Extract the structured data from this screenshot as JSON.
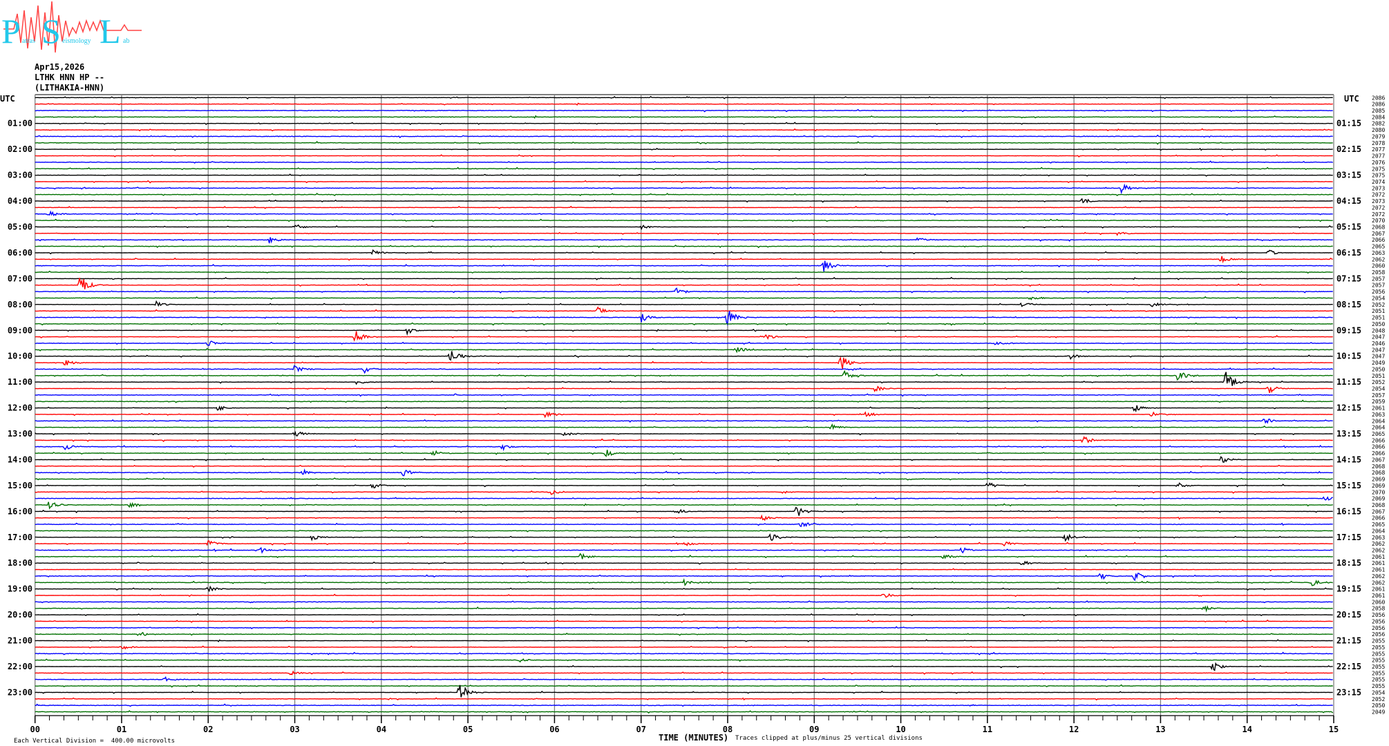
{
  "logo": {
    "letters": [
      "P",
      "S",
      "L"
    ],
    "words": [
      "atras",
      "eismology",
      "ab"
    ],
    "colors": {
      "letters": "#22c8ea",
      "wave": "#ff4444"
    }
  },
  "header": {
    "date": "Apr15,2026",
    "channel": "LTHK HNN HP --",
    "station": "(LITHAKIA-HNN)"
  },
  "footer": {
    "scale_note": "Each Vertical Division =  400.00 microvolts",
    "clip_note": "Traces clipped at plus/minus 25 vertical divisions"
  },
  "chart_data": {
    "type": "line",
    "xlabel": "TIME (MINUTES)",
    "xlim": [
      0,
      15
    ],
    "x_ticks": [
      "00",
      "01",
      "02",
      "03",
      "04",
      "05",
      "06",
      "07",
      "08",
      "09",
      "10",
      "11",
      "12",
      "13",
      "14",
      "15"
    ],
    "left_axis_title": "UTC",
    "right_axis_title": "UTC",
    "left_labels": [
      "01:00",
      "02:00",
      "03:00",
      "04:00",
      "05:00",
      "06:00",
      "07:00",
      "08:00",
      "09:00",
      "10:00",
      "11:00",
      "12:00",
      "13:00",
      "14:00",
      "15:00",
      "16:00",
      "17:00",
      "18:00",
      "19:00",
      "20:00",
      "21:00",
      "22:00",
      "23:00"
    ],
    "right_labels": [
      "01:15",
      "02:15",
      "03:15",
      "04:15",
      "05:15",
      "06:15",
      "07:15",
      "08:15",
      "09:15",
      "10:15",
      "11:15",
      "12:15",
      "13:15",
      "14:15",
      "15:15",
      "16:15",
      "17:15",
      "18:15",
      "19:15",
      "20:15",
      "21:15",
      "22:15",
      "23:15"
    ],
    "trace_colors": [
      "#000000",
      "#ff0000",
      "#0000ff",
      "#007000"
    ],
    "row_values": [
      "2086",
      "2086",
      "2085",
      "2084",
      "2082",
      "2080",
      "2079",
      "2078",
      "2077",
      "2077",
      "2076",
      "2075",
      "2075",
      "2074",
      "2073",
      "2072",
      "2073",
      "2072",
      "2072",
      "2070",
      "2068",
      "2067",
      "2066",
      "2065",
      "2063",
      "2062",
      "2060",
      "2058",
      "2057",
      "2057",
      "2056",
      "2054",
      "2052",
      "2051",
      "2051",
      "2050",
      "2048",
      "2047",
      "2046",
      "2047",
      "2047",
      "2049",
      "2050",
      "2051",
      "2052",
      "2054",
      "2057",
      "2059",
      "2061",
      "2063",
      "2064",
      "2064",
      "2065",
      "2066",
      "2066",
      "2066",
      "2067",
      "2068",
      "2068",
      "2069",
      "2069",
      "2070",
      "2069",
      "2068",
      "2067",
      "2066",
      "2065",
      "2064",
      "2063",
      "2062",
      "2062",
      "2061",
      "2061",
      "2061",
      "2062",
      "2062",
      "2061",
      "2061",
      "2060",
      "2058",
      "2056",
      "2056",
      "2056",
      "2056",
      "2055",
      "2055",
      "2055",
      "2055",
      "2055",
      "2055",
      "2055",
      "2055",
      "2054",
      "2052",
      "2050",
      "2049"
    ],
    "events": [
      [
        12.55,
        14,
        0.8
      ],
      [
        12.1,
        16,
        0.5
      ],
      [
        0.16,
        18,
        0.6
      ],
      [
        3.0,
        20,
        0.5
      ],
      [
        7.0,
        20,
        0.4
      ],
      [
        12.5,
        21,
        0.4
      ],
      [
        2.7,
        22,
        0.6
      ],
      [
        10.2,
        22,
        0.4
      ],
      [
        3.9,
        24,
        0.5
      ],
      [
        9.1,
        26,
        1.2
      ],
      [
        13.7,
        25,
        0.6
      ],
      [
        14.25,
        24,
        0.5
      ],
      [
        0.52,
        29,
        1.6
      ],
      [
        7.4,
        30,
        0.6
      ],
      [
        11.5,
        31,
        0.4
      ],
      [
        1.4,
        32,
        0.5
      ],
      [
        6.5,
        33,
        0.6
      ],
      [
        8.0,
        34,
        1.4
      ],
      [
        7.0,
        34,
        0.8
      ],
      [
        11.4,
        32,
        0.6
      ],
      [
        12.9,
        32,
        0.5
      ],
      [
        3.7,
        37,
        1.0
      ],
      [
        4.3,
        36,
        0.6
      ],
      [
        8.4,
        37,
        0.9
      ],
      [
        11.1,
        38,
        0.5
      ],
      [
        2.0,
        38,
        0.5
      ],
      [
        4.8,
        40,
        1.2
      ],
      [
        8.1,
        39,
        0.6
      ],
      [
        0.35,
        41,
        0.6
      ],
      [
        9.3,
        41,
        1.8
      ],
      [
        11.95,
        40,
        0.6
      ],
      [
        3.8,
        42,
        0.7
      ],
      [
        3.0,
        42,
        0.7
      ],
      [
        9.35,
        43,
        0.8
      ],
      [
        13.2,
        43,
        1.2
      ],
      [
        13.75,
        44,
        1.8
      ],
      [
        14.25,
        45,
        0.8
      ],
      [
        3.7,
        44,
        0.5
      ],
      [
        9.7,
        45,
        0.6
      ],
      [
        2.1,
        48,
        0.5
      ],
      [
        12.7,
        48,
        0.6
      ],
      [
        5.9,
        49,
        0.6
      ],
      [
        9.6,
        49,
        0.6
      ],
      [
        12.9,
        49,
        0.5
      ],
      [
        3.0,
        52,
        0.7
      ],
      [
        6.1,
        52,
        0.6
      ],
      [
        12.1,
        53,
        0.8
      ],
      [
        9.2,
        51,
        0.5
      ],
      [
        0.35,
        54,
        0.5
      ],
      [
        5.4,
        54,
        0.5
      ],
      [
        14.2,
        50,
        0.6
      ],
      [
        6.6,
        55,
        0.6
      ],
      [
        4.6,
        55,
        0.5
      ],
      [
        13.7,
        56,
        0.6
      ],
      [
        4.25,
        58,
        0.7
      ],
      [
        3.1,
        58,
        0.5
      ],
      [
        3.9,
        60,
        0.6
      ],
      [
        11.0,
        60,
        0.6
      ],
      [
        13.2,
        60,
        0.5
      ],
      [
        5.95,
        61,
        0.5
      ],
      [
        0.15,
        63,
        1.0
      ],
      [
        1.1,
        63,
        0.5
      ],
      [
        14.9,
        62,
        0.6
      ],
      [
        8.8,
        64,
        1.0
      ],
      [
        7.4,
        64,
        0.5
      ],
      [
        8.4,
        65,
        0.5
      ],
      [
        8.85,
        66,
        0.6
      ],
      [
        8.5,
        68,
        0.8
      ],
      [
        11.9,
        68,
        0.7
      ],
      [
        3.2,
        68,
        0.5
      ],
      [
        2.0,
        69,
        0.6
      ],
      [
        11.2,
        69,
        0.5
      ],
      [
        7.5,
        69,
        0.5
      ],
      [
        2.6,
        70,
        0.5
      ],
      [
        10.7,
        70,
        0.5
      ],
      [
        6.3,
        71,
        0.5
      ],
      [
        10.5,
        71,
        0.5
      ],
      [
        11.4,
        72,
        0.5
      ],
      [
        12.3,
        74,
        0.8
      ],
      [
        12.7,
        74,
        0.8
      ],
      [
        2.0,
        76,
        0.5
      ],
      [
        7.5,
        75,
        0.5
      ],
      [
        14.75,
        75,
        0.6
      ],
      [
        9.8,
        77,
        0.5
      ],
      [
        13.5,
        79,
        0.5
      ],
      [
        1.2,
        83,
        0.5
      ],
      [
        1.0,
        85,
        0.4
      ],
      [
        5.6,
        87,
        0.4
      ],
      [
        13.6,
        88,
        0.8
      ],
      [
        2.95,
        89,
        0.4
      ],
      [
        1.5,
        90,
        0.4
      ],
      [
        4.9,
        92,
        1.6
      ]
    ]
  }
}
